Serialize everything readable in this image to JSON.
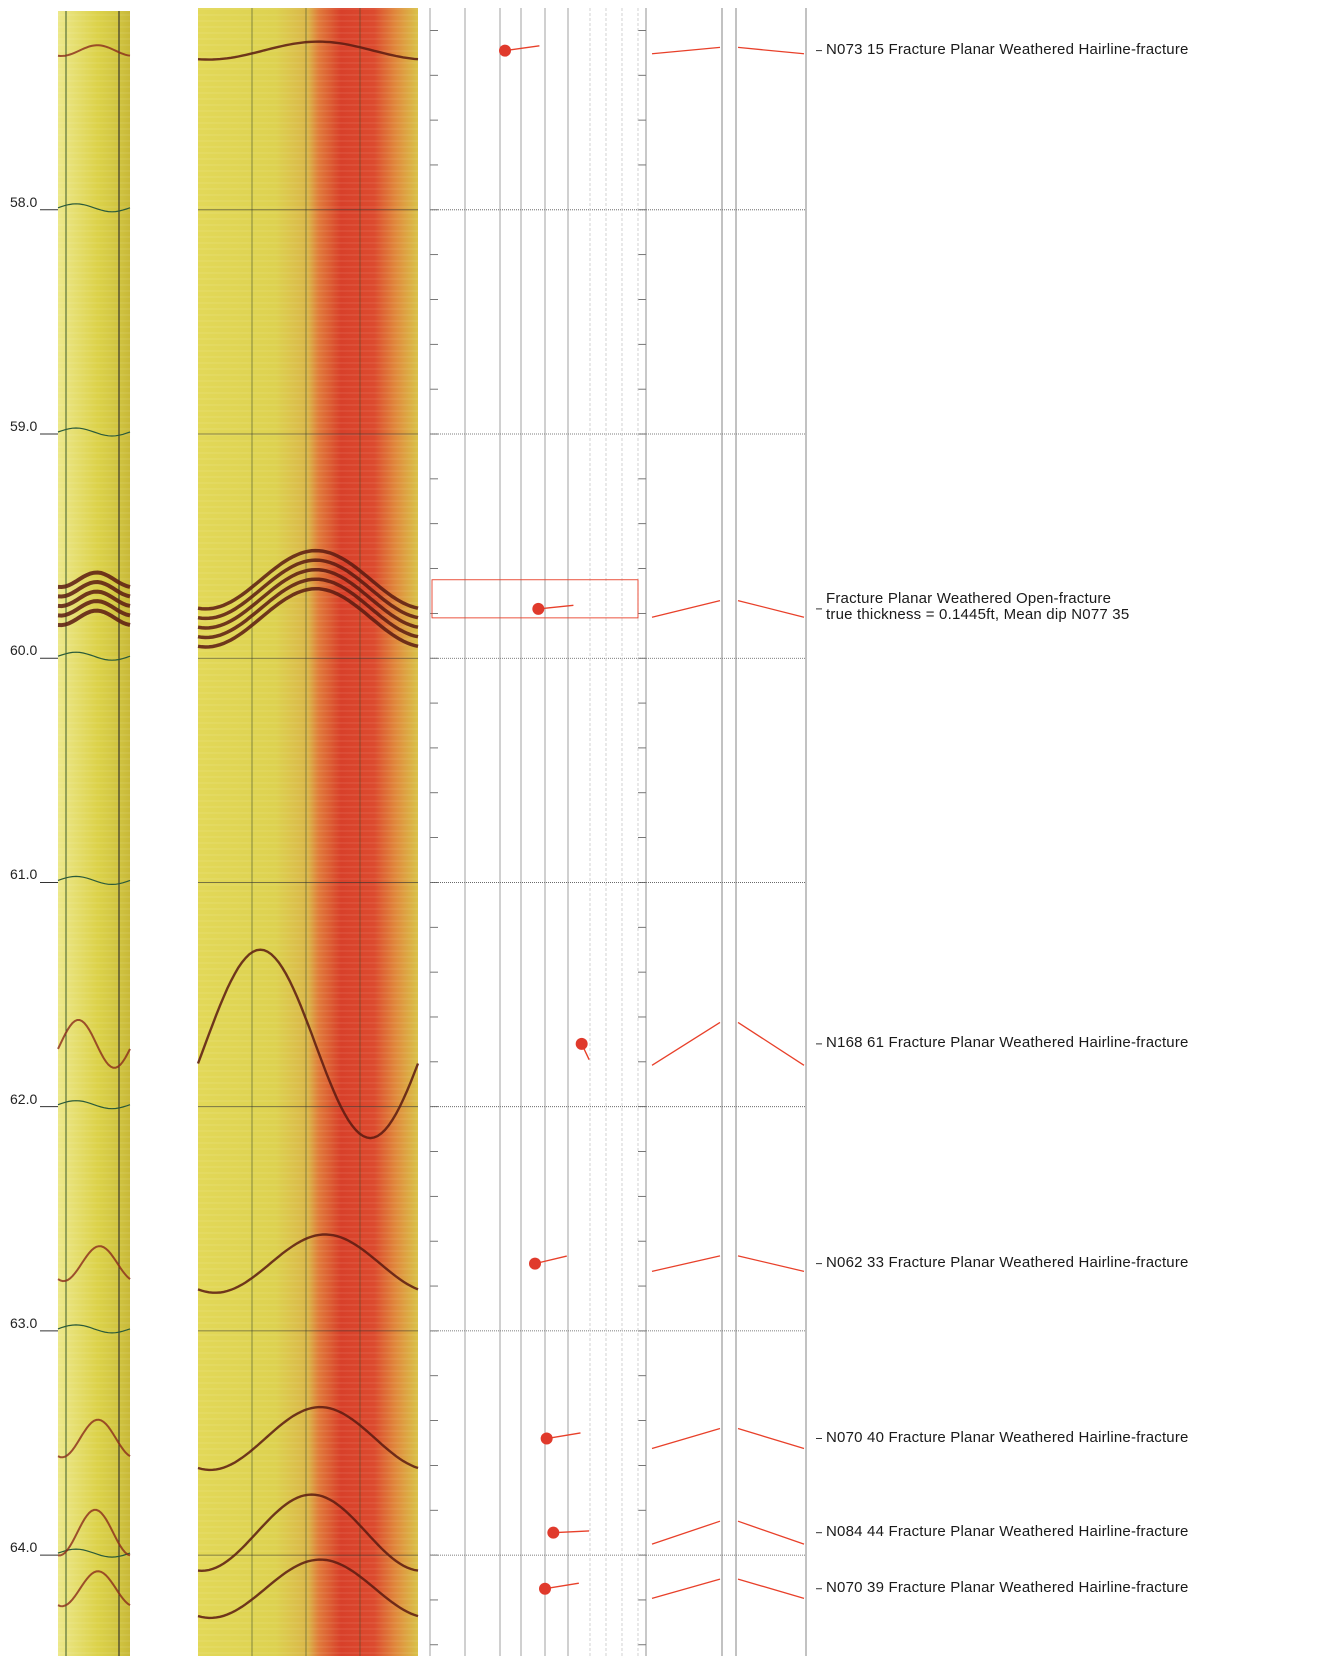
{
  "depth_axis": {
    "unit": "ft",
    "top_depth": 57.1,
    "bottom_depth": 64.45,
    "labels": [
      "58.0",
      "59.0",
      "60.0",
      "61.0",
      "62.0",
      "63.0",
      "64.0"
    ]
  },
  "colors": {
    "image_base": "#dcd24a",
    "image_light": "#ece88a",
    "image_dark": "#5a1a10",
    "image_red": "#d8402a",
    "fracture_red": "#e8402a",
    "grid_gray": "#b0b0b0",
    "grid_dark": "#555555"
  },
  "fractures": [
    {
      "depth": 57.29,
      "azimuth": "N073",
      "dip": 15,
      "label": "N073 15 Fracture Planar Weathered Hairline-fracture",
      "sine_amplitude_ft": 0.04
    },
    {
      "depth": 59.78,
      "azimuth": "N077",
      "dip": 35,
      "open": true,
      "label": "Fracture Planar Weathered Open-fracture",
      "detail": "true thickness =  0.1445ft, Mean dip N077 35",
      "top_depth": 59.65,
      "bottom_depth": 59.82,
      "sine_amplitude_ft": 0.13
    },
    {
      "depth": 61.72,
      "azimuth": "N168",
      "dip": 61,
      "label": "N168 61 Fracture Planar Weathered Hairline-fracture",
      "sine_amplitude_ft": 0.42
    },
    {
      "depth": 62.7,
      "azimuth": "N062",
      "dip": 33,
      "label": "N062 33 Fracture Planar Weathered Hairline-fracture",
      "sine_amplitude_ft": 0.13
    },
    {
      "depth": 63.48,
      "azimuth": "N070",
      "dip": 40,
      "label": "N070 40 Fracture Planar Weathered Hairline-fracture",
      "sine_amplitude_ft": 0.14
    },
    {
      "depth": 63.9,
      "azimuth": "N084",
      "dip": 44,
      "label": "N084 44 Fracture Planar Weathered Hairline-fracture",
      "sine_amplitude_ft": 0.17
    },
    {
      "depth": 64.15,
      "azimuth": "N070",
      "dip": 39,
      "label": "N070 39 Fracture Planar Weathered Hairline-fracture",
      "sine_amplitude_ft": 0.13
    }
  ]
}
